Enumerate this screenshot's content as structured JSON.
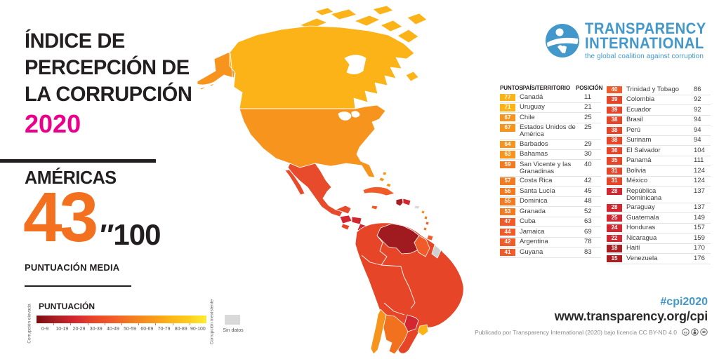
{
  "header": {
    "title_lines": [
      "ÍNDICE DE",
      "PERCEPCIÓN DE",
      "LA CORRUPCIÓN"
    ],
    "year": "2020",
    "region": "AMÉRICAS",
    "score": "43",
    "score_suffix": "″100",
    "score_caption": "PUNTUACIÓN MEDIA",
    "accent_pink": "#eb008b",
    "accent_orange": "#f3701f"
  },
  "legend": {
    "title": "PUNTUACIÓN",
    "left_label": "Corrupción elevada",
    "right_label": "Corrupción inexistente",
    "no_data_label": "Sin datos",
    "no_data_color": "#d9d9d9",
    "ranges": [
      "0-9",
      "10-19",
      "20-29",
      "30-39",
      "40-49",
      "50-59",
      "60-69",
      "70-79",
      "80-89",
      "90-100"
    ],
    "gradient": [
      "#7a0c10",
      "#a81e22",
      "#d22630",
      "#e64528",
      "#f15a29",
      "#f37a21",
      "#f7941e",
      "#fbb317",
      "#fdcb1d",
      "#ffec33"
    ]
  },
  "logo": {
    "line1": "TRANSPARENCY",
    "line2": "INTERNATIONAL",
    "tagline": "the global coalition against corruption",
    "brand_blue": "#4298cb"
  },
  "table": {
    "headers": {
      "points": "PUNTOS",
      "country": "PAÍS/TERRITORIO",
      "rank": "POSICIÓN"
    },
    "left_rows": [
      {
        "points": 77,
        "country": "Canadá",
        "rank": 11
      },
      {
        "points": 71,
        "country": "Uruguay",
        "rank": 21
      },
      {
        "points": 67,
        "country": "Chile",
        "rank": 25
      },
      {
        "points": 67,
        "country": "Estados Unidos de América",
        "rank": 25
      },
      {
        "points": 64,
        "country": "Barbados",
        "rank": 29
      },
      {
        "points": 63,
        "country": "Bahamas",
        "rank": 30
      },
      {
        "points": 59,
        "country": "San Vicente y las Granadinas",
        "rank": 40
      },
      {
        "points": 57,
        "country": "Costa Rica",
        "rank": 42
      },
      {
        "points": 56,
        "country": "Santa Lucía",
        "rank": 45
      },
      {
        "points": 55,
        "country": "Dominica",
        "rank": 48
      },
      {
        "points": 53,
        "country": "Granada",
        "rank": 52
      },
      {
        "points": 47,
        "country": "Cuba",
        "rank": 63
      },
      {
        "points": 44,
        "country": "Jamaica",
        "rank": 69
      },
      {
        "points": 42,
        "country": "Argentina",
        "rank": 78
      },
      {
        "points": 41,
        "country": "Guyana",
        "rank": 83
      }
    ],
    "right_rows": [
      {
        "points": 40,
        "country": "Trinidad y Tobago",
        "rank": 86
      },
      {
        "points": 39,
        "country": "Colombia",
        "rank": 92
      },
      {
        "points": 39,
        "country": "Ecuador",
        "rank": 92
      },
      {
        "points": 38,
        "country": "Brasil",
        "rank": 94
      },
      {
        "points": 38,
        "country": "Perú",
        "rank": 94
      },
      {
        "points": 38,
        "country": "Surinam",
        "rank": 94
      },
      {
        "points": 36,
        "country": "El Salvador",
        "rank": 104
      },
      {
        "points": 35,
        "country": "Panamá",
        "rank": 111
      },
      {
        "points": 31,
        "country": "Bolivia",
        "rank": 124
      },
      {
        "points": 31,
        "country": "México",
        "rank": 124
      },
      {
        "points": 28,
        "country": "República Dominicana",
        "rank": 137
      },
      {
        "points": 28,
        "country": "Paraguay",
        "rank": 137
      },
      {
        "points": 25,
        "country": "Guatemala",
        "rank": 149
      },
      {
        "points": 24,
        "country": "Honduras",
        "rank": 157
      },
      {
        "points": 22,
        "country": "Nicaragua",
        "rank": 159
      },
      {
        "points": 18,
        "country": "Haití",
        "rank": 170
      },
      {
        "points": 15,
        "country": "Venezuela",
        "rank": 176
      }
    ]
  },
  "footer": {
    "hashtag": "#cpi2020",
    "url": "www.transparency.org/cpi",
    "license": "Publicado por Transparency International (2020) bajo licencia CC BY-ND 4.0"
  },
  "map": {
    "colors": {
      "canada": "#fbb317",
      "usa": "#f7941e",
      "mexico": "#e84b2c",
      "guatemala": "#d22630",
      "honduras": "#d22630",
      "el_salvador": "#e64528",
      "nicaragua": "#d22630",
      "costa_rica": "#f37a21",
      "panama": "#e64528",
      "cuba": "#f15a29",
      "bahamas": "#f7941e",
      "jamaica": "#f15a29",
      "haiti": "#a81e22",
      "dominican_republic": "#d22630",
      "trinidad": "#f15a29",
      "antilles_a": "#f7941e",
      "antilles_b": "#f37a21",
      "antilles_c": "#f15a29",
      "sa_base": "#e64528",
      "venezuela": "#a01b20",
      "guyana": "#f15a29",
      "french_guiana": "#cfcfcf",
      "paraguay": "#d22630",
      "uruguay": "#fbb317",
      "chile": "#f7941e",
      "argentina": "#f2711f",
      "no_data": "#d9d9d9"
    }
  }
}
